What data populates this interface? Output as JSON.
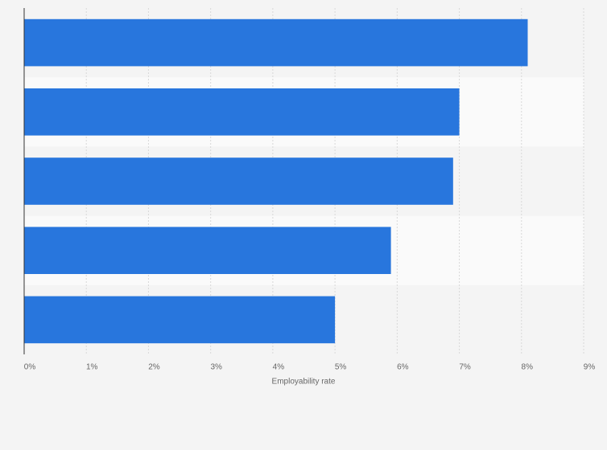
{
  "chart_data": {
    "type": "hbar",
    "xlabel": "Employability rate",
    "categories": [
      null,
      null,
      null,
      null,
      null
    ],
    "values": [
      8.1,
      7.0,
      6.9,
      5.9,
      5.0
    ],
    "color": "#2876dd",
    "xlim": [
      0,
      9
    ],
    "xticks": [
      {
        "value": 0,
        "label": "0%"
      },
      {
        "value": 1,
        "label": "1%"
      },
      {
        "value": 2,
        "label": "2%"
      },
      {
        "value": 3,
        "label": "3%"
      },
      {
        "value": 4,
        "label": "4%"
      },
      {
        "value": 5,
        "label": "5%"
      },
      {
        "value": 6,
        "label": "6%"
      },
      {
        "value": 7,
        "label": "7%"
      },
      {
        "value": 8,
        "label": "8%"
      },
      {
        "value": 9,
        "label": "9%"
      }
    ],
    "grid": true
  }
}
